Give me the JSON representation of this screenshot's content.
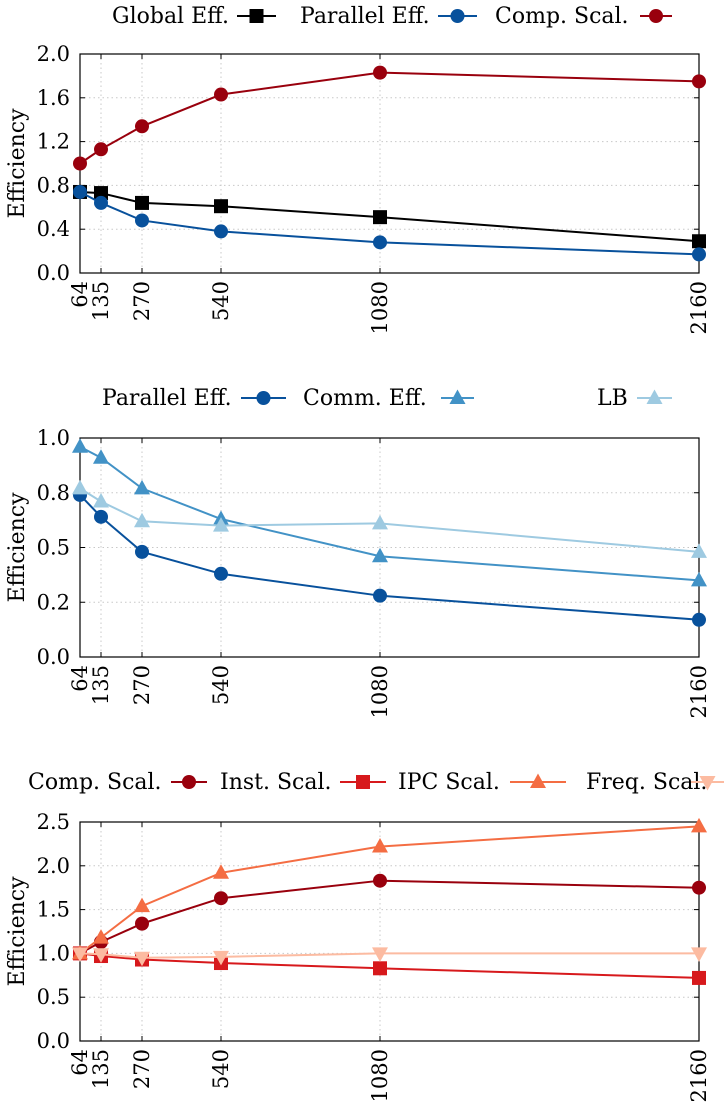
{
  "chart_data": [
    {
      "type": "line",
      "ylabel": "Efficiency",
      "xlabel": "",
      "x": [
        64,
        135,
        270,
        540,
        1080,
        2160
      ],
      "xlim": [
        64,
        2160
      ],
      "ylim": [
        0,
        2.0
      ],
      "yticks": [
        "0.0",
        "0.4",
        "0.8",
        "1.2",
        "1.6",
        "2.0"
      ],
      "ytick_values": [
        0,
        0.4,
        0.8,
        1.2,
        1.6,
        2.0
      ],
      "xticks": [
        "64",
        "135",
        "270",
        "540",
        "1080",
        "2160"
      ],
      "grid": true,
      "legend_position": "top",
      "series": [
        {
          "name": "Global Eff.",
          "marker": "square",
          "color": "#000000",
          "values": [
            0.74,
            0.73,
            0.64,
            0.61,
            0.51,
            0.29
          ]
        },
        {
          "name": "Parallel Eff.",
          "marker": "circle",
          "color": "#08519c",
          "values": [
            0.74,
            0.64,
            0.48,
            0.38,
            0.28,
            0.17
          ]
        },
        {
          "name": "Comp. Scal.",
          "marker": "circle",
          "color": "#99000d",
          "values": [
            1.0,
            1.13,
            1.34,
            1.63,
            1.83,
            1.75
          ]
        }
      ]
    },
    {
      "type": "line",
      "ylabel": "Efficiency",
      "xlabel": "",
      "x": [
        64,
        135,
        270,
        540,
        1080,
        2160
      ],
      "xlim": [
        64,
        2160
      ],
      "ylim": [
        0,
        1.0
      ],
      "yticks": [
        "0.0",
        "0.2",
        "0.5",
        "0.8",
        "1.0"
      ],
      "ytick_values": [
        0,
        0.25,
        0.5,
        0.75,
        1.0
      ],
      "xticks": [
        "64",
        "135",
        "270",
        "540",
        "1080",
        "2160"
      ],
      "grid": true,
      "legend_position": "top",
      "series": [
        {
          "name": "Parallel Eff.",
          "marker": "circle",
          "color": "#08519c",
          "values": [
            0.74,
            0.64,
            0.48,
            0.38,
            0.28,
            0.17
          ]
        },
        {
          "name": "Comm. Eff.",
          "marker": "triangle",
          "color": "#4292c6",
          "values": [
            0.96,
            0.91,
            0.77,
            0.63,
            0.46,
            0.35
          ]
        },
        {
          "name": "LB",
          "marker": "triangle",
          "color": "#9ecae1",
          "values": [
            0.77,
            0.71,
            0.62,
            0.6,
            0.61,
            0.48
          ]
        }
      ]
    },
    {
      "type": "line",
      "ylabel": "Efficiency",
      "xlabel": "",
      "x": [
        64,
        135,
        270,
        540,
        1080,
        2160
      ],
      "xlim": [
        64,
        2160
      ],
      "ylim": [
        0,
        2.5
      ],
      "yticks": [
        "0.0",
        "0.5",
        "1.0",
        "1.5",
        "2.0",
        "2.5"
      ],
      "ytick_values": [
        0,
        0.5,
        1.0,
        1.5,
        2.0,
        2.5
      ],
      "xticks": [
        "64",
        "135",
        "270",
        "540",
        "1080",
        "2160"
      ],
      "grid": true,
      "legend_position": "top",
      "series": [
        {
          "name": "Comp. Scal.",
          "marker": "circle",
          "color": "#99000d",
          "values": [
            1.0,
            1.13,
            1.34,
            1.63,
            1.83,
            1.75
          ]
        },
        {
          "name": "Inst. Scal.",
          "marker": "square",
          "color": "#d7191c",
          "values": [
            1.0,
            0.97,
            0.93,
            0.89,
            0.83,
            0.72
          ]
        },
        {
          "name": "IPC Scal.",
          "marker": "triangle",
          "color": "#f46d43",
          "values": [
            1.0,
            1.18,
            1.54,
            1.92,
            2.22,
            2.45
          ]
        },
        {
          "name": "Freq. Scal.",
          "marker": "triangle-down",
          "color": "#fcbba1",
          "values": [
            1.0,
            0.99,
            0.95,
            0.96,
            1.0,
            1.0
          ]
        }
      ]
    }
  ]
}
